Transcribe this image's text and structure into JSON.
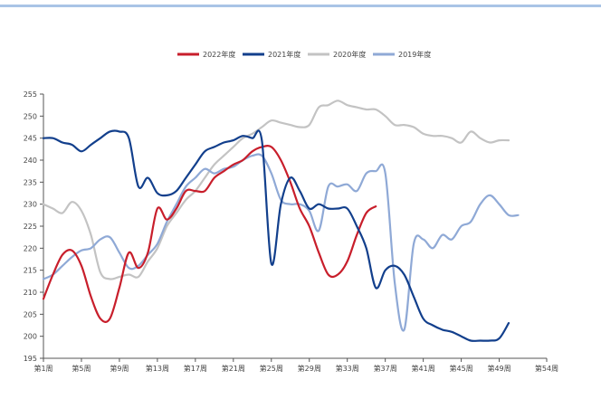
{
  "chart_data": {
    "type": "line",
    "x_categories": [
      "第1周",
      "第5周",
      "第9周",
      "第13周",
      "第17周",
      "第21周",
      "第25周",
      "第29周",
      "第33周",
      "第37周",
      "第41周",
      "第45周",
      "第49周",
      "第54周"
    ],
    "x_range": [
      1,
      54
    ],
    "ylim": [
      195,
      255
    ],
    "y_ticks": [
      195,
      200,
      205,
      210,
      215,
      220,
      225,
      230,
      235,
      240,
      245,
      250,
      255
    ],
    "grid": false,
    "legend_position": "top",
    "series": [
      {
        "name": "2022年度",
        "color": "#c81e2b",
        "points": [
          [
            1,
            208.5
          ],
          [
            2,
            214
          ],
          [
            3,
            218.5
          ],
          [
            4,
            219.5
          ],
          [
            5,
            216
          ],
          [
            6,
            209
          ],
          [
            7,
            204
          ],
          [
            8,
            204
          ],
          [
            9,
            211
          ],
          [
            10,
            219
          ],
          [
            11,
            215.5
          ],
          [
            12,
            219
          ],
          [
            13,
            229
          ],
          [
            14,
            226.5
          ],
          [
            15,
            229
          ],
          [
            16,
            233
          ],
          [
            17,
            233
          ],
          [
            18,
            233
          ],
          [
            19,
            236
          ],
          [
            20,
            237.5
          ],
          [
            21,
            239
          ],
          [
            22,
            240
          ],
          [
            23,
            242
          ],
          [
            24,
            243
          ],
          [
            25,
            243
          ],
          [
            26,
            240
          ],
          [
            27,
            235
          ],
          [
            28,
            229
          ],
          [
            29,
            225
          ],
          [
            30,
            219
          ],
          [
            31,
            214
          ],
          [
            32,
            214
          ],
          [
            33,
            217
          ],
          [
            34,
            223
          ],
          [
            35,
            228
          ],
          [
            36,
            229.5
          ]
        ]
      },
      {
        "name": "2021年度",
        "color": "#123f8c",
        "points": [
          [
            1,
            245
          ],
          [
            2,
            245
          ],
          [
            3,
            244
          ],
          [
            4,
            243.5
          ],
          [
            5,
            242
          ],
          [
            6,
            243.5
          ],
          [
            7,
            245
          ],
          [
            8,
            246.5
          ],
          [
            9,
            246.5
          ],
          [
            10,
            245
          ],
          [
            11,
            234
          ],
          [
            12,
            236
          ],
          [
            13,
            232.5
          ],
          [
            14,
            232
          ],
          [
            15,
            233
          ],
          [
            16,
            236
          ],
          [
            17,
            239
          ],
          [
            18,
            242
          ],
          [
            19,
            243
          ],
          [
            20,
            244
          ],
          [
            21,
            244.5
          ],
          [
            22,
            245.5
          ],
          [
            23,
            245
          ],
          [
            24,
            244.5
          ],
          [
            25,
            216.5
          ],
          [
            26,
            230
          ],
          [
            27,
            236
          ],
          [
            28,
            233
          ],
          [
            29,
            229
          ],
          [
            30,
            230
          ],
          [
            31,
            229
          ],
          [
            32,
            229
          ],
          [
            33,
            229
          ],
          [
            34,
            225
          ],
          [
            35,
            220
          ],
          [
            36,
            211
          ],
          [
            37,
            215
          ],
          [
            38,
            216
          ],
          [
            39,
            214
          ],
          [
            40,
            209
          ],
          [
            41,
            204
          ],
          [
            42,
            202.5
          ],
          [
            43,
            201.5
          ],
          [
            44,
            201
          ],
          [
            45,
            200
          ],
          [
            46,
            199
          ],
          [
            47,
            199
          ],
          [
            48,
            199
          ],
          [
            49,
            199.5
          ],
          [
            50,
            203
          ]
        ]
      },
      {
        "name": "2020年度",
        "color": "#c3c3c3",
        "points": [
          [
            1,
            230
          ],
          [
            2,
            229
          ],
          [
            3,
            228
          ],
          [
            4,
            230.5
          ],
          [
            5,
            228.5
          ],
          [
            6,
            223
          ],
          [
            7,
            214.5
          ],
          [
            8,
            213
          ],
          [
            9,
            213.5
          ],
          [
            10,
            214
          ],
          [
            11,
            213.5
          ],
          [
            12,
            217
          ],
          [
            13,
            220
          ],
          [
            14,
            225
          ],
          [
            15,
            228
          ],
          [
            16,
            231
          ],
          [
            17,
            233
          ],
          [
            18,
            236
          ],
          [
            19,
            239
          ],
          [
            20,
            241
          ],
          [
            21,
            243
          ],
          [
            22,
            245
          ],
          [
            23,
            246
          ],
          [
            24,
            247.5
          ],
          [
            25,
            249
          ],
          [
            26,
            248.5
          ],
          [
            27,
            248
          ],
          [
            28,
            247.5
          ],
          [
            29,
            248
          ],
          [
            30,
            252
          ],
          [
            31,
            252.5
          ],
          [
            32,
            253.5
          ],
          [
            33,
            252.5
          ],
          [
            34,
            252
          ],
          [
            35,
            251.5
          ],
          [
            36,
            251.5
          ],
          [
            37,
            250
          ],
          [
            38,
            248
          ],
          [
            39,
            248
          ],
          [
            40,
            247.5
          ],
          [
            41,
            246
          ],
          [
            42,
            245.5
          ],
          [
            43,
            245.5
          ],
          [
            44,
            245
          ],
          [
            45,
            244
          ],
          [
            46,
            246.5
          ],
          [
            47,
            245
          ],
          [
            48,
            244
          ],
          [
            49,
            244.5
          ],
          [
            50,
            244.5
          ]
        ]
      },
      {
        "name": "2019年度",
        "color": "#8fa9d6",
        "points": [
          [
            1,
            213
          ],
          [
            2,
            214
          ],
          [
            3,
            216
          ],
          [
            4,
            218
          ],
          [
            5,
            219.5
          ],
          [
            6,
            220
          ],
          [
            7,
            222
          ],
          [
            8,
            222.5
          ],
          [
            9,
            219
          ],
          [
            10,
            215.5
          ],
          [
            11,
            216
          ],
          [
            12,
            218.5
          ],
          [
            13,
            221
          ],
          [
            14,
            226
          ],
          [
            15,
            230
          ],
          [
            16,
            234
          ],
          [
            17,
            236
          ],
          [
            18,
            238
          ],
          [
            19,
            237
          ],
          [
            20,
            238
          ],
          [
            21,
            238.5
          ],
          [
            22,
            240
          ],
          [
            23,
            241
          ],
          [
            24,
            241
          ],
          [
            25,
            237
          ],
          [
            26,
            231
          ],
          [
            27,
            230
          ],
          [
            28,
            230
          ],
          [
            29,
            228.5
          ],
          [
            30,
            224
          ],
          [
            31,
            234
          ],
          [
            32,
            234
          ],
          [
            33,
            234.5
          ],
          [
            34,
            233
          ],
          [
            35,
            237
          ],
          [
            36,
            237.5
          ],
          [
            37,
            237
          ],
          [
            38,
            212
          ],
          [
            39,
            201.5
          ],
          [
            40,
            221
          ],
          [
            41,
            222
          ],
          [
            42,
            220
          ],
          [
            43,
            223
          ],
          [
            44,
            222
          ],
          [
            45,
            225
          ],
          [
            46,
            226
          ],
          [
            47,
            230
          ],
          [
            48,
            232
          ],
          [
            49,
            230
          ],
          [
            50,
            227.5
          ],
          [
            51,
            227.5
          ]
        ]
      }
    ]
  }
}
